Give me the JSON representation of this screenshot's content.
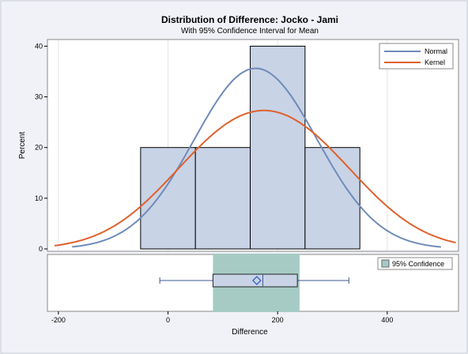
{
  "chart_data": {
    "type": "histogram",
    "title": "Distribution of Difference: Jocko - Jami",
    "subtitle": "With 95% Confidence Interval for Mean",
    "xlabel": "Difference",
    "ylabel": "Percent",
    "xlim": [
      -220,
      530
    ],
    "ylim": [
      0,
      41
    ],
    "x_ticks": [
      -200,
      0,
      200,
      400
    ],
    "y_ticks": [
      0,
      10,
      20,
      30,
      40
    ],
    "histogram": {
      "bins": [
        {
          "x0": -50,
          "x1": 50,
          "percent": 20
        },
        {
          "x0": 50,
          "x1": 150,
          "percent": 20
        },
        {
          "x0": 150,
          "x1": 250,
          "percent": 40
        },
        {
          "x0": 250,
          "x1": 350,
          "percent": 20
        }
      ],
      "fill_color": "#c8d3e6",
      "edge_color": "#000000"
    },
    "series": [
      {
        "name": "Normal",
        "type": "normal",
        "mean": 160,
        "sd": 112,
        "x_range": [
          -175,
          498
        ],
        "color": "#6f8bb8"
      },
      {
        "name": "Kernel",
        "type": "kernel",
        "points_x": [
          50,
          100,
          150,
          200,
          250,
          300
        ],
        "bandwidth": 113,
        "x_range": [
          -207,
          525
        ],
        "color": "#e0602c"
      }
    ],
    "legend": {
      "position": "top-right",
      "entries": [
        "Normal",
        "Kernel"
      ]
    },
    "boxplot": {
      "min": -15,
      "q1": 82,
      "median": 173,
      "q3": 236,
      "max": 330,
      "mean": 162,
      "ci_low": 82,
      "ci_high": 240,
      "ci_color": "#a6cbc5",
      "box_color": "#c8d3e6",
      "line_color": "#3d5a8e",
      "legend": "95% Confidence"
    }
  }
}
